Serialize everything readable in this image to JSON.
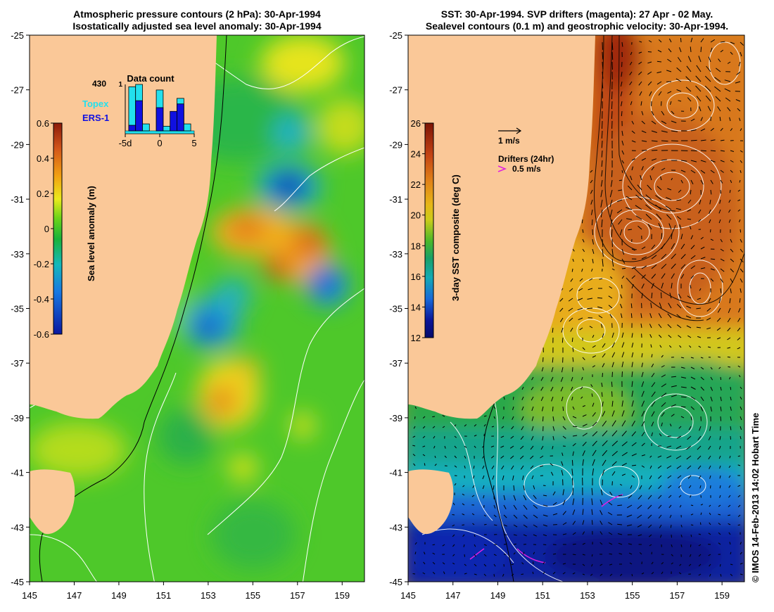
{
  "left_panel": {
    "title_line1": "Atmospheric pressure contours (2 hPa): 30-Apr-1994",
    "title_line2": "Isostatically adjusted sea level anomaly: 30-Apr-1994",
    "colorbar": {
      "label": "Sea level anomaly (m)",
      "ticks": [
        "0.6",
        "0.4",
        "0.2",
        "0",
        "-0.2",
        "-0.4",
        "-0.6"
      ]
    },
    "inset": {
      "title": "Data count",
      "count": "430",
      "count_max": "1",
      "legend": [
        {
          "name": "Topex",
          "color": "#22e0ee"
        },
        {
          "name": "ERS-1",
          "color": "#1010e0"
        }
      ],
      "xticks": [
        "-5d",
        "0",
        "5"
      ],
      "days": [
        -4,
        -3,
        -2,
        -1,
        0,
        1,
        2,
        3,
        4
      ],
      "topex": [
        0.95,
        1.0,
        0.15,
        0.0,
        0.88,
        0.1,
        0.0,
        0.7,
        0.15
      ],
      "ers1": [
        0.12,
        0.65,
        0.0,
        0.0,
        0.5,
        0.0,
        0.42,
        0.58,
        0.0
      ]
    }
  },
  "right_panel": {
    "title_line1": "SST: 30-Apr-1994. SVP drifters (magenta): 27 Apr - 02 May.",
    "title_line2": "Sealevel contours (0.1 m) and geostrophic velocity: 30-Apr-1994.",
    "colorbar": {
      "label": "3-day SST composite (deg C)",
      "ticks": [
        "26",
        "24",
        "22",
        "20",
        "18",
        "16",
        "14",
        "12"
      ]
    },
    "velocity_scale_label": "1 m/s",
    "drifters_label": "Drifters (24hr)",
    "drifter_speed_label": "0.5 m/s"
  },
  "axes": {
    "lat_ticks": [
      "-25",
      "-27",
      "-29",
      "-31",
      "-33",
      "-35",
      "-37",
      "-39",
      "-41",
      "-43",
      "-45"
    ],
    "lon_ticks": [
      "145",
      "147",
      "149",
      "151",
      "153",
      "155",
      "157",
      "159"
    ]
  },
  "credit": "© IMOS 14-Feb-2013 14:02 Hobart Time",
  "colors": {
    "land": "#fac898",
    "sla_scale": [
      "#8b1a0a",
      "#d2551a",
      "#f2a012",
      "#eaea1c",
      "#6cd418",
      "#18b23a",
      "#14b8ba",
      "#1878e2",
      "#0a18a0"
    ],
    "sst_scale": [
      "#7c1405",
      "#c44414",
      "#e08218",
      "#e6b618",
      "#cccc1a",
      "#4ab82a",
      "#18a068",
      "#14aab4",
      "#1868d8",
      "#0a1498",
      "#050a6a"
    ],
    "drifter": "#e020e0"
  }
}
